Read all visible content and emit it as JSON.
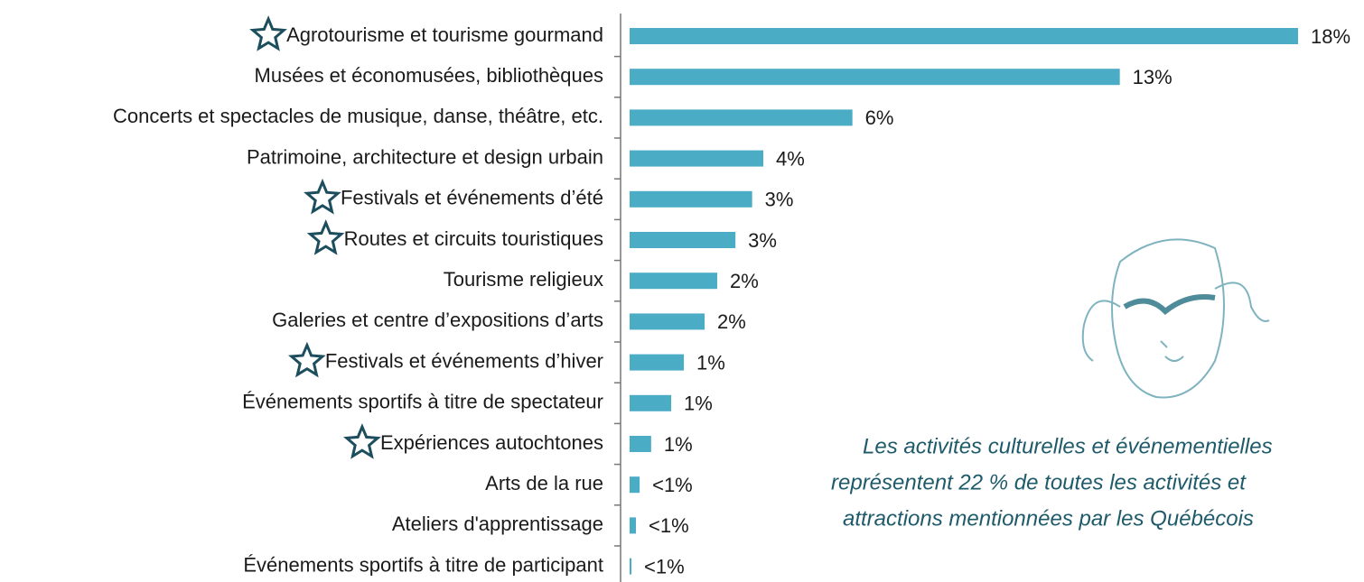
{
  "chart_data": {
    "type": "bar",
    "orientation": "horizontal",
    "categories": [
      "Agrotourisme et tourisme gourmand",
      "Musées et économusées, bibliothèques",
      "Concerts et spectacles de musique, danse, théâtre, etc.",
      "Patrimoine, architecture et design urbain",
      "Festivals et événements d’été",
      "Routes et circuits touristiques",
      "Tourisme religieux",
      "Galeries et centre d’expositions d’arts",
      "Festivals et événements d’hiver",
      "Événements sportifs à titre de spectateur",
      "Expériences autochtones",
      "Arts de la rue",
      "Ateliers d'apprentissage",
      "Événements sportifs à titre de participant"
    ],
    "values": [
      18,
      13.2,
      6,
      3.6,
      3.3,
      2.85,
      2.36,
      2.02,
      1.46,
      1.12,
      0.58,
      0.27,
      0.17,
      0.05
    ],
    "value_labels": [
      "18%",
      "13%",
      "6%",
      "4%",
      "3%",
      "3%",
      "2%",
      "2%",
      "1%",
      "1%",
      "1%",
      "<1%",
      "<1%",
      "<1%"
    ],
    "starred": [
      true,
      false,
      false,
      false,
      true,
      true,
      false,
      false,
      true,
      false,
      true,
      false,
      false,
      false
    ],
    "color": "#4bacc6",
    "xlim": [
      0,
      18
    ],
    "annotation": [
      "Les activités culturelles et événementielles",
      "représentent 22 % de toutes les activités et",
      "attractions mentionnées par les Québécois"
    ]
  }
}
